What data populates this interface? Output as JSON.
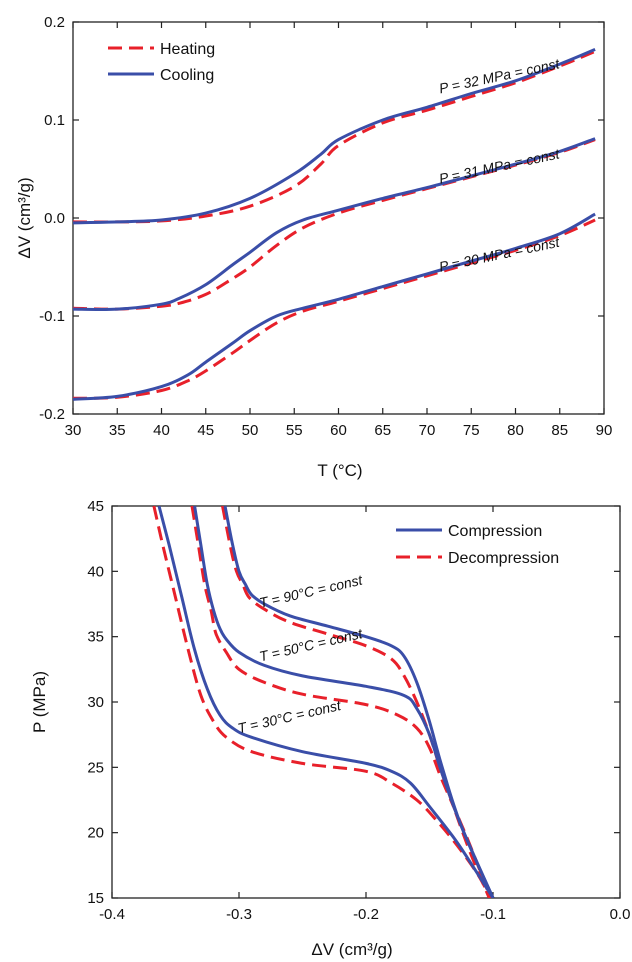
{
  "chart_data": [
    {
      "type": "line",
      "xlabel": "T (°C)",
      "ylabel": "ΔV (cm³/g)",
      "xlim": [
        30,
        90
      ],
      "ylim": [
        -0.2,
        0.2
      ],
      "xticks": [
        "30",
        "35",
        "40",
        "45",
        "50",
        "55",
        "60",
        "65",
        "70",
        "75",
        "80",
        "85",
        "90"
      ],
      "yticks": [
        "-0.2",
        "-0.1",
        "0.0",
        "0.1",
        "0.2"
      ],
      "legend": {
        "placement": "top-left",
        "entries": [
          {
            "label": "Heating",
            "color": "#e8202a",
            "style": "dashed"
          },
          {
            "label": "Cooling",
            "color": "#3a4ea8",
            "style": "solid"
          }
        ]
      },
      "series": [
        {
          "legend": "Cooling",
          "group": "P = 32 MPa = const",
          "color": "#3a4ea8",
          "style": "solid",
          "x": [
            30,
            35,
            40,
            45,
            50,
            55,
            58,
            60,
            65,
            70,
            75,
            80,
            85,
            89
          ],
          "y": [
            -0.005,
            -0.004,
            -0.002,
            0.005,
            0.02,
            0.045,
            0.065,
            0.08,
            0.1,
            0.113,
            0.127,
            0.14,
            0.157,
            0.172
          ]
        },
        {
          "legend": "Heating",
          "group": "P = 32 MPa = const",
          "color": "#e8202a",
          "style": "dashed",
          "x": [
            30,
            35,
            40,
            45,
            50,
            55,
            58,
            60,
            65,
            70,
            75,
            80,
            85,
            89
          ],
          "y": [
            -0.004,
            -0.004,
            -0.003,
            0.002,
            0.012,
            0.032,
            0.055,
            0.074,
            0.097,
            0.11,
            0.124,
            0.138,
            0.155,
            0.17
          ]
        },
        {
          "legend": "Cooling",
          "group": "P = 31 MPa = const",
          "color": "#3a4ea8",
          "style": "solid",
          "x": [
            30,
            35,
            40,
            42,
            45,
            48,
            50,
            53,
            56,
            60,
            65,
            70,
            75,
            80,
            85,
            89
          ],
          "y": [
            -0.093,
            -0.093,
            -0.088,
            -0.082,
            -0.068,
            -0.048,
            -0.035,
            -0.015,
            -0.002,
            0.008,
            0.02,
            0.031,
            0.043,
            0.055,
            0.068,
            0.081
          ]
        },
        {
          "legend": "Heating",
          "group": "P = 31 MPa = const",
          "color": "#e8202a",
          "style": "dashed",
          "x": [
            30,
            35,
            40,
            42,
            45,
            48,
            50,
            53,
            56,
            60,
            65,
            70,
            75,
            80,
            85,
            89
          ],
          "y": [
            -0.092,
            -0.093,
            -0.09,
            -0.087,
            -0.078,
            -0.062,
            -0.05,
            -0.028,
            -0.01,
            0.005,
            0.018,
            0.03,
            0.042,
            0.054,
            0.067,
            0.08
          ]
        },
        {
          "legend": "Cooling",
          "group": "P = 30 MPa = const",
          "color": "#3a4ea8",
          "style": "solid",
          "x": [
            30,
            35,
            40,
            43,
            45,
            48,
            50,
            53,
            56,
            60,
            65,
            70,
            75,
            80,
            85,
            89
          ],
          "y": [
            -0.185,
            -0.182,
            -0.172,
            -0.16,
            -0.147,
            -0.128,
            -0.115,
            -0.1,
            -0.092,
            -0.083,
            -0.07,
            -0.057,
            -0.044,
            -0.031,
            -0.016,
            0.004
          ]
        },
        {
          "legend": "Heating",
          "group": "P = 30 MPa = const",
          "color": "#e8202a",
          "style": "dashed",
          "x": [
            30,
            35,
            40,
            43,
            45,
            48,
            50,
            53,
            56,
            60,
            65,
            70,
            75,
            80,
            85,
            89
          ],
          "y": [
            -0.184,
            -0.183,
            -0.176,
            -0.166,
            -0.156,
            -0.138,
            -0.125,
            -0.107,
            -0.095,
            -0.085,
            -0.072,
            -0.059,
            -0.046,
            -0.033,
            -0.018,
            -0.002
          ]
        }
      ],
      "annotations": [
        {
          "text": "P = 32 MPa = const",
          "x": 71.5,
          "y": 0.127,
          "angle": 12
        },
        {
          "text": "P = 31 MPa = const",
          "x": 71.5,
          "y": 0.035,
          "angle": 12
        },
        {
          "text": "P = 30 MPa = const",
          "x": 71.5,
          "y": -0.055,
          "angle": 12
        }
      ]
    },
    {
      "type": "line",
      "xlabel": "ΔV (cm³/g)",
      "ylabel": "P (MPa)",
      "xlim": [
        -0.4,
        0.0
      ],
      "ylim": [
        15,
        45
      ],
      "xticks": [
        "-0.4",
        "-0.3",
        "-0.2",
        "-0.1",
        "0.0"
      ],
      "yticks": [
        "15",
        "20",
        "25",
        "30",
        "35",
        "40",
        "45"
      ],
      "legend": {
        "placement": "top-right",
        "entries": [
          {
            "label": "Compression",
            "color": "#3a4ea8",
            "style": "solid"
          },
          {
            "label": "Decompression",
            "color": "#e8202a",
            "style": "dashed"
          }
        ]
      },
      "series": [
        {
          "legend": "Compression",
          "group": "T = 30°C = const",
          "color": "#3a4ea8",
          "style": "solid",
          "x": [
            -0.363,
            -0.355,
            -0.345,
            -0.335,
            -0.325,
            -0.315,
            -0.305,
            -0.29,
            -0.25,
            -0.2,
            -0.18,
            -0.165,
            -0.15,
            -0.13,
            -0.115,
            -0.1
          ],
          "y": [
            45,
            42,
            38,
            34,
            31,
            29,
            28,
            27.3,
            26.2,
            25.3,
            24.7,
            23.8,
            22,
            19.5,
            17.3,
            15
          ]
        },
        {
          "legend": "Decompression",
          "group": "T = 30°C = const",
          "color": "#e8202a",
          "style": "dashed",
          "x": [
            -0.367,
            -0.36,
            -0.35,
            -0.34,
            -0.33,
            -0.32,
            -0.31,
            -0.29,
            -0.25,
            -0.2,
            -0.18,
            -0.16,
            -0.145,
            -0.128,
            -0.112,
            -0.102
          ],
          "y": [
            45,
            42,
            38,
            34,
            30.5,
            28.5,
            27.3,
            26.2,
            25.3,
            24.7,
            23.8,
            22.5,
            21,
            19,
            16.8,
            15
          ]
        },
        {
          "legend": "Compression",
          "group": "T = 50°C = const",
          "color": "#3a4ea8",
          "style": "solid",
          "x": [
            -0.335,
            -0.33,
            -0.325,
            -0.32,
            -0.315,
            -0.31,
            -0.3,
            -0.28,
            -0.25,
            -0.2,
            -0.17,
            -0.16,
            -0.15,
            -0.14,
            -0.125,
            -0.1
          ],
          "y": [
            45,
            42,
            39,
            37,
            35.6,
            34.8,
            33.8,
            32.8,
            32,
            31.2,
            30.5,
            29.5,
            27.5,
            24.5,
            20.5,
            15
          ]
        },
        {
          "legend": "Decompression",
          "group": "T = 50°C = const",
          "color": "#e8202a",
          "style": "dashed",
          "x": [
            -0.337,
            -0.332,
            -0.327,
            -0.322,
            -0.318,
            -0.31,
            -0.3,
            -0.28,
            -0.25,
            -0.2,
            -0.175,
            -0.16,
            -0.15,
            -0.14,
            -0.12,
            -0.102
          ],
          "y": [
            45,
            42,
            39,
            37,
            35.2,
            33.8,
            32.5,
            31.5,
            30.6,
            29.8,
            29,
            28,
            26.5,
            24,
            19.5,
            15
          ]
        },
        {
          "legend": "Compression",
          "group": "T = 90°C = const",
          "color": "#3a4ea8",
          "style": "solid",
          "x": [
            -0.311,
            -0.305,
            -0.3,
            -0.295,
            -0.29,
            -0.28,
            -0.26,
            -0.23,
            -0.2,
            -0.18,
            -0.17,
            -0.16,
            -0.15,
            -0.14,
            -0.125,
            -0.1
          ],
          "y": [
            45,
            42,
            40,
            39,
            38.2,
            37.5,
            36.6,
            35.8,
            35,
            34.3,
            33.5,
            31.5,
            28.5,
            25,
            20.5,
            15
          ]
        },
        {
          "legend": "Decompression",
          "group": "T = 90°C = const",
          "color": "#e8202a",
          "style": "dashed",
          "x": [
            -0.313,
            -0.307,
            -0.302,
            -0.297,
            -0.292,
            -0.28,
            -0.26,
            -0.23,
            -0.2,
            -0.18,
            -0.17,
            -0.16,
            -0.15,
            -0.14,
            -0.12,
            -0.103
          ],
          "y": [
            45,
            42,
            40,
            39,
            38,
            37.1,
            36.1,
            35.2,
            34.3,
            33.3,
            32,
            30,
            27.5,
            24.5,
            19,
            15
          ]
        }
      ],
      "annotations": [
        {
          "text": "T = 90°C = const",
          "x": -0.283,
          "y": 37.2,
          "angle": 13
        },
        {
          "text": "T = 50°C = const",
          "x": -0.283,
          "y": 33.1,
          "angle": 13
        },
        {
          "text": "T = 30°C = const",
          "x": -0.3,
          "y": 27.6,
          "angle": 13
        }
      ]
    }
  ]
}
